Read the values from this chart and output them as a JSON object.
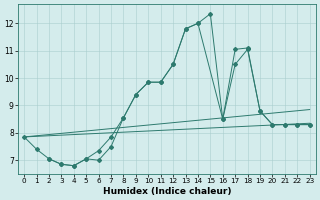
{
  "xlabel": "Humidex (Indice chaleur)",
  "bg_color": "#d4ecec",
  "line_color": "#2d7a6e",
  "xlim": [
    -0.5,
    23.5
  ],
  "ylim": [
    6.5,
    12.7
  ],
  "yticks": [
    7,
    8,
    9,
    10,
    11,
    12
  ],
  "xticks": [
    0,
    1,
    2,
    3,
    4,
    5,
    6,
    7,
    8,
    9,
    10,
    11,
    12,
    13,
    14,
    15,
    16,
    17,
    18,
    19,
    20,
    21,
    22,
    23
  ],
  "line1_x": [
    0,
    1,
    2,
    3,
    4,
    5,
    6,
    7,
    8,
    9,
    10,
    11,
    12,
    13,
    14,
    15,
    16,
    17,
    18,
    19,
    20,
    21,
    22,
    23
  ],
  "line1_y": [
    7.85,
    7.4,
    7.05,
    6.85,
    6.8,
    7.05,
    7.35,
    7.85,
    8.55,
    9.4,
    9.85,
    9.85,
    10.5,
    11.8,
    12.0,
    12.35,
    8.5,
    11.05,
    11.1,
    8.8,
    8.3,
    8.3,
    8.3,
    8.3
  ],
  "line2_x": [
    2,
    3,
    4,
    5,
    6,
    7,
    8,
    9,
    10,
    11,
    12,
    13,
    14,
    16,
    17,
    18,
    19,
    20,
    21,
    22,
    23
  ],
  "line2_y": [
    7.05,
    6.85,
    6.8,
    7.05,
    7.0,
    7.5,
    8.55,
    9.4,
    9.85,
    9.85,
    10.5,
    11.8,
    12.0,
    8.5,
    10.5,
    11.05,
    8.8,
    8.3,
    8.3,
    8.3,
    8.3
  ],
  "line3_x": [
    0,
    23
  ],
  "line3_y": [
    7.85,
    8.35
  ],
  "line4_x": [
    0,
    23
  ],
  "line4_y": [
    7.85,
    8.85
  ]
}
